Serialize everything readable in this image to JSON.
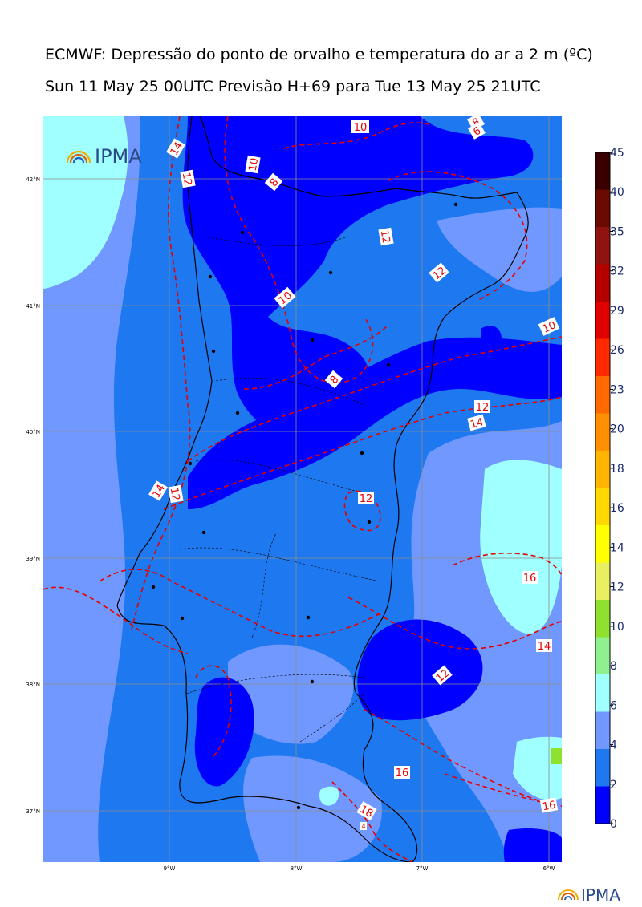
{
  "header": {
    "title_line1": "ECMWF: Depressão do ponto de orvalho e temperatura do ar a 2 m (ºC)",
    "title_line2": "Sun 11 May 25 00UTC Previsão H+69 para Tue 13 May 25 21UTC"
  },
  "map": {
    "lat_labels": [
      "42°N",
      "41°N",
      "40°N",
      "39°N",
      "38°N",
      "37°N"
    ],
    "lon_labels": [
      "9°W",
      "8°W",
      "7°W",
      "6°W"
    ],
    "contour_labels": [
      "14",
      "12",
      "10",
      "10",
      "8",
      "8",
      "6",
      "12",
      "12",
      "10",
      "10",
      "8",
      "12",
      "14",
      "14",
      "12",
      "12",
      "16",
      "14",
      "12",
      "16",
      "18",
      "16",
      "4"
    ],
    "inset_logo_text": "IPMA"
  },
  "colorbar": {
    "ticks": [
      "45",
      "40",
      "35",
      "32",
      "29",
      "26",
      "23",
      "20",
      "18",
      "16",
      "14",
      "12",
      "10",
      "8",
      "6",
      "4",
      "2",
      "0"
    ],
    "colors": [
      "#3a0000",
      "#6b0a00",
      "#8f1410",
      "#b50000",
      "#e00000",
      "#ff2a00",
      "#ff6a00",
      "#ff9000",
      "#ffb400",
      "#ffd800",
      "#ffff00",
      "#e8f060",
      "#90e030",
      "#90f090",
      "#a0ffff",
      "#7098ff",
      "#1e78f0",
      "#0000ff"
    ]
  },
  "footer": {
    "logo_text": "IPMA"
  }
}
